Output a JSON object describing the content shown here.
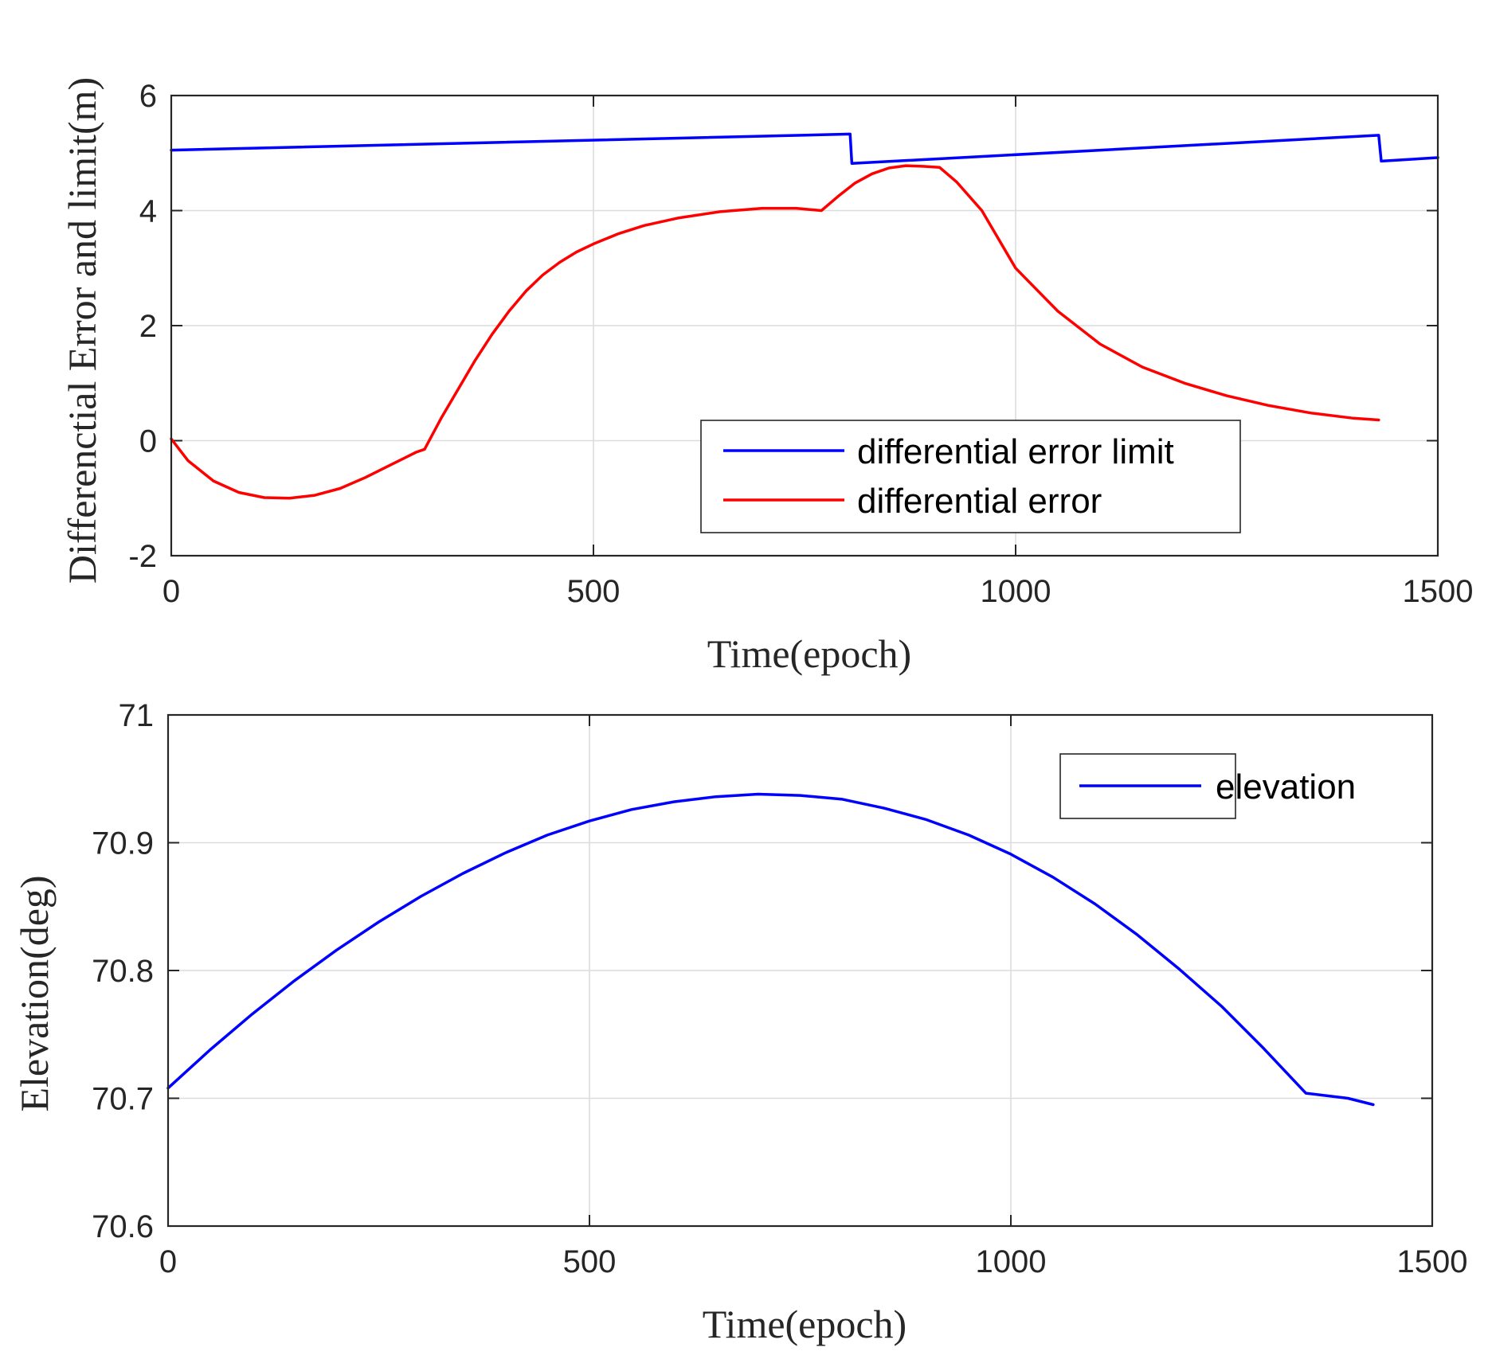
{
  "chart_data": [
    {
      "type": "line",
      "xlabel": "Time(epoch)",
      "ylabel": "Differenctial Error and limit(m)",
      "xlim": [
        0,
        1500
      ],
      "ylim": [
        -2,
        6
      ],
      "xticks": [
        0,
        500,
        1000,
        1500
      ],
      "xtick_labels": [
        "0",
        "500",
        "1000",
        "1500"
      ],
      "yticks": [
        -2,
        0,
        2,
        4,
        6
      ],
      "ytick_labels": [
        "-2",
        "0",
        "2",
        "4",
        "6"
      ],
      "grid": true,
      "legend_position": "bottom-right",
      "series": [
        {
          "name": "differential error limit",
          "color": "#0000ff",
          "x": [
            0,
            804,
            804,
            806,
            1430,
            1430,
            1433,
            1500
          ],
          "y": [
            5.05,
            5.33,
            5.33,
            4.82,
            5.31,
            5.31,
            4.86,
            4.92
          ]
        },
        {
          "name": "differential error",
          "color": "#ff0000",
          "x": [
            0,
            20,
            50,
            80,
            110,
            140,
            170,
            200,
            230,
            260,
            290,
            300,
            320,
            340,
            360,
            380,
            400,
            420,
            440,
            460,
            480,
            500,
            530,
            560,
            600,
            650,
            700,
            740,
            770,
            790,
            810,
            830,
            850,
            870,
            890,
            910,
            930,
            960,
            1000,
            1050,
            1100,
            1150,
            1200,
            1250,
            1300,
            1350,
            1400,
            1430
          ],
          "y": [
            0.03,
            -0.35,
            -0.7,
            -0.9,
            -0.99,
            -1.0,
            -0.95,
            -0.83,
            -0.64,
            -0.42,
            -0.2,
            -0.15,
            0.4,
            0.9,
            1.4,
            1.85,
            2.25,
            2.6,
            2.88,
            3.1,
            3.28,
            3.42,
            3.6,
            3.74,
            3.87,
            3.98,
            4.04,
            4.04,
            4.0,
            4.25,
            4.48,
            4.64,
            4.74,
            4.78,
            4.77,
            4.75,
            4.5,
            4.0,
            3.0,
            2.25,
            1.68,
            1.28,
            1.0,
            0.78,
            0.61,
            0.48,
            0.39,
            0.36
          ]
        }
      ]
    },
    {
      "type": "line",
      "xlabel": "Time(epoch)",
      "ylabel": "Elevation(deg)",
      "xlim": [
        0,
        1500
      ],
      "ylim": [
        70.6,
        71.0
      ],
      "xticks": [
        0,
        500,
        1000,
        1500
      ],
      "xtick_labels": [
        "0",
        "500",
        "1000",
        "1500"
      ],
      "yticks": [
        70.6,
        70.7,
        70.8,
        70.9,
        71.0
      ],
      "ytick_labels": [
        "70.6",
        "70.7",
        "70.8",
        "70.9",
        "71"
      ],
      "grid": true,
      "legend_position": "top-right",
      "series": [
        {
          "name": "elevation",
          "color": "#0000ff",
          "x": [
            0,
            50,
            100,
            150,
            200,
            250,
            300,
            350,
            400,
            450,
            500,
            550,
            600,
            650,
            700,
            750,
            800,
            850,
            900,
            950,
            1000,
            1050,
            1100,
            1150,
            1200,
            1250,
            1300,
            1350,
            1400,
            1430
          ],
          "y": [
            70.708,
            70.738,
            70.766,
            70.792,
            70.816,
            70.838,
            70.858,
            70.876,
            70.892,
            70.906,
            70.917,
            70.926,
            70.932,
            70.936,
            70.938,
            70.937,
            70.934,
            70.927,
            70.918,
            70.906,
            70.891,
            70.873,
            70.852,
            70.828,
            70.801,
            70.772,
            70.739,
            70.704,
            70.7,
            70.695
          ]
        }
      ]
    }
  ]
}
